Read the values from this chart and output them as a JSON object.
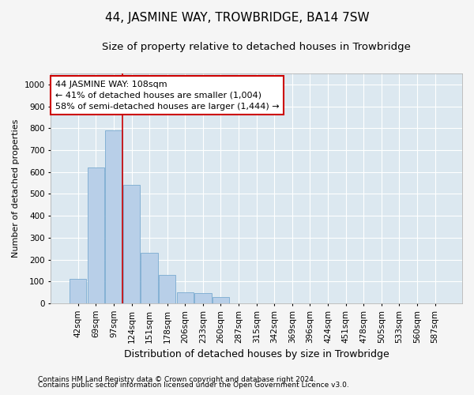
{
  "title": "44, JASMINE WAY, TROWBRIDGE, BA14 7SW",
  "subtitle": "Size of property relative to detached houses in Trowbridge",
  "xlabel": "Distribution of detached houses by size in Trowbridge",
  "ylabel": "Number of detached properties",
  "footnote1": "Contains HM Land Registry data © Crown copyright and database right 2024.",
  "footnote2": "Contains public sector information licensed under the Open Government Licence v3.0.",
  "categories": [
    "42sqm",
    "69sqm",
    "97sqm",
    "124sqm",
    "151sqm",
    "178sqm",
    "206sqm",
    "233sqm",
    "260sqm",
    "287sqm",
    "315sqm",
    "342sqm",
    "369sqm",
    "396sqm",
    "424sqm",
    "451sqm",
    "478sqm",
    "505sqm",
    "533sqm",
    "560sqm",
    "587sqm"
  ],
  "values": [
    110,
    620,
    790,
    540,
    230,
    130,
    50,
    45,
    30,
    0,
    0,
    0,
    0,
    0,
    0,
    0,
    0,
    0,
    0,
    0,
    0
  ],
  "bar_color": "#b8cfe8",
  "bar_edge_color": "#7aaad0",
  "vline_color": "#cc0000",
  "vline_x": 2.5,
  "annotation_text": "44 JASMINE WAY: 108sqm\n← 41% of detached houses are smaller (1,004)\n58% of semi-detached houses are larger (1,444) →",
  "annotation_box_facecolor": "#ffffff",
  "annotation_box_edgecolor": "#cc0000",
  "ylim": [
    0,
    1050
  ],
  "yticks": [
    0,
    100,
    200,
    300,
    400,
    500,
    600,
    700,
    800,
    900,
    1000
  ],
  "background_color": "#dce8f0",
  "grid_color": "#ffffff",
  "fig_facecolor": "#f5f5f5",
  "title_fontsize": 11,
  "subtitle_fontsize": 9.5,
  "xlabel_fontsize": 9,
  "ylabel_fontsize": 8,
  "tick_fontsize": 7.5,
  "annotation_fontsize": 8,
  "footnote_fontsize": 6.5
}
